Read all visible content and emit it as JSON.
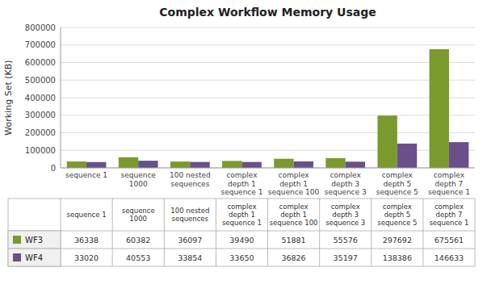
{
  "chart_data": {
    "type": "bar",
    "title": "Complex Workflow Memory Usage",
    "y_label": "Working Set (KB)",
    "categories": [
      "sequence 1",
      "sequence\n1000",
      "100 nested\nsequences",
      "complex\ndepth 1\nsequence 1",
      "complex\ndepth 1\nsequence 100",
      "complex\ndepth 3\nsequence 3",
      "complex\ndepth 5\nsequence 5",
      "complex\ndepth 7\nsequence 1"
    ],
    "series": [
      {
        "name": "WF3",
        "color": "#7a9a2e",
        "values": [
          36338,
          60382,
          36097,
          39490,
          51881,
          55576,
          297692,
          675561
        ]
      },
      {
        "name": "WF4",
        "color": "#6a4f8a",
        "values": [
          33020,
          40553,
          33854,
          33650,
          36826,
          35197,
          138386,
          146633
        ]
      }
    ],
    "ylim": [
      0,
      800000
    ],
    "yticks": [
      0,
      100000,
      200000,
      300000,
      400000,
      500000,
      600000,
      700000,
      800000
    ],
    "grid": true,
    "legend": "bottom"
  }
}
